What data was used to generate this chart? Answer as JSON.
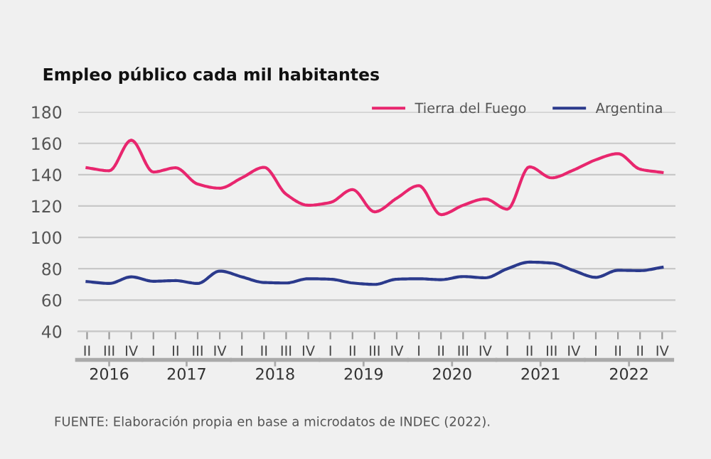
{
  "chart_data": {
    "type": "line",
    "title": "Empleo público cada mil habitantes",
    "categories": [
      "II",
      "III",
      "IV",
      "I",
      "II",
      "III",
      "IV",
      "I",
      "II",
      "III",
      "IV",
      "I",
      "II",
      "III",
      "IV",
      "I",
      "II",
      "III",
      "IV",
      "I",
      "II",
      "III",
      "IV",
      "I",
      "II",
      "II",
      "IV"
    ],
    "series": [
      {
        "name": "Tierra del Fuego",
        "color": "#e8266e",
        "values": [
          144.4,
          142.5,
          162,
          141.7,
          144.4,
          134,
          131.4,
          138,
          144.7,
          127.5,
          120.5,
          122.3,
          130.5,
          116.3,
          125,
          133,
          114.5,
          120.5,
          124.5,
          118,
          145,
          138,
          143,
          149.5,
          153.4,
          143.5,
          141.4
        ]
      },
      {
        "name": "Argentina",
        "color": "#2b3a8c",
        "values": [
          71.8,
          70.6,
          74.8,
          72,
          72.4,
          70.6,
          78.5,
          74.8,
          71.2,
          70.9,
          73.6,
          73.3,
          70.9,
          70,
          73.3,
          73.6,
          73,
          75,
          74.2,
          80,
          84.2,
          83.6,
          78.8,
          74.5,
          79,
          78.8,
          80.9
        ]
      }
    ],
    "ylim": [
      40,
      180
    ],
    "yticks": [
      40,
      60,
      80,
      100,
      120,
      140,
      160,
      180
    ],
    "grid": "y",
    "legend": "top right",
    "annotations": [
      "2016",
      "2017",
      "2018",
      "2019",
      "2020",
      "2021",
      "2022",
      "FUENTE: Elaboración propia en base a microdatos de INDEC (2022)."
    ]
  }
}
